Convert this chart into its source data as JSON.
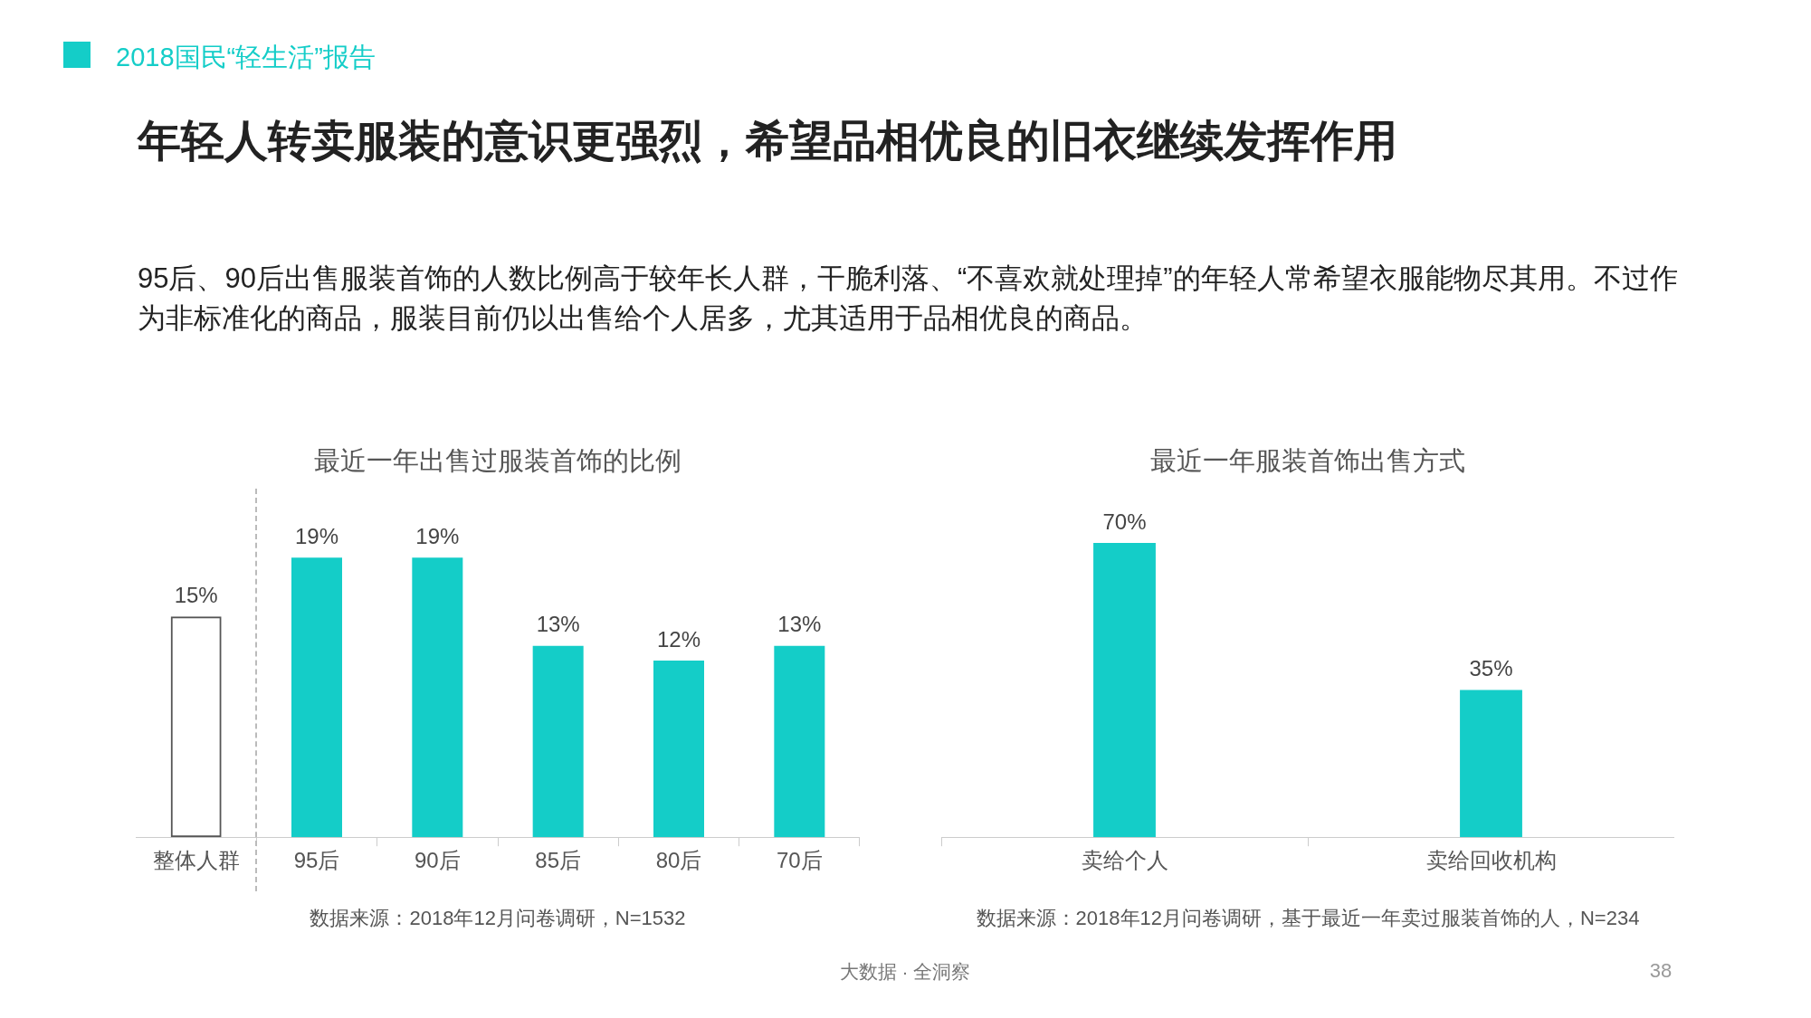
{
  "chart_data": [
    {
      "type": "other",
      "title": "年轻人转卖服装的意识更强烈，希望品相优良的旧衣继续发挥作用",
      "subtitle": "95后、90后出售服装首饰的人数比例高于较年长人群，干脆利落、“不喜欢就处理掉”的年轻人常希望衣服能物尽其用。不过作为非标准化的商品，服装目前仍以出售给个人居多，尤其适用于品相优良的商品。",
      "annotations": [
        "2018国民“轻生活”报告",
        "大数据 · 全洞察",
        "38"
      ]
    },
    {
      "type": "bar",
      "title": "最近一年出售过服装首饰的比例",
      "categories": [
        "整体人群",
        "95后",
        "90后",
        "85后",
        "80后",
        "70后"
      ],
      "values": [
        15,
        19,
        19,
        13,
        12,
        13
      ],
      "value_labels": [
        "15%",
        "19%",
        "19%",
        "13%",
        "12%",
        "13%"
      ],
      "colors": [
        "#555555",
        "#14cdc8",
        "#14cdc8",
        "#14cdc8",
        "#14cdc8",
        "#14cdc8"
      ],
      "legend": false,
      "annotations": [
        "数据来源：2018年12月问卷调研，N=1532"
      ]
    },
    {
      "type": "bar",
      "title": "最近一年服装首饰出售方式",
      "categories": [
        "卖给个人",
        "卖给回收机构"
      ],
      "values": [
        70,
        35
      ],
      "value_labels": [
        "70%",
        "35%"
      ],
      "color": "#14cdc8",
      "legend": false,
      "annotations": [
        "数据来源：2018年12月问卷调研，基于最近一年卖过服装首饰的人，N=234"
      ]
    }
  ]
}
